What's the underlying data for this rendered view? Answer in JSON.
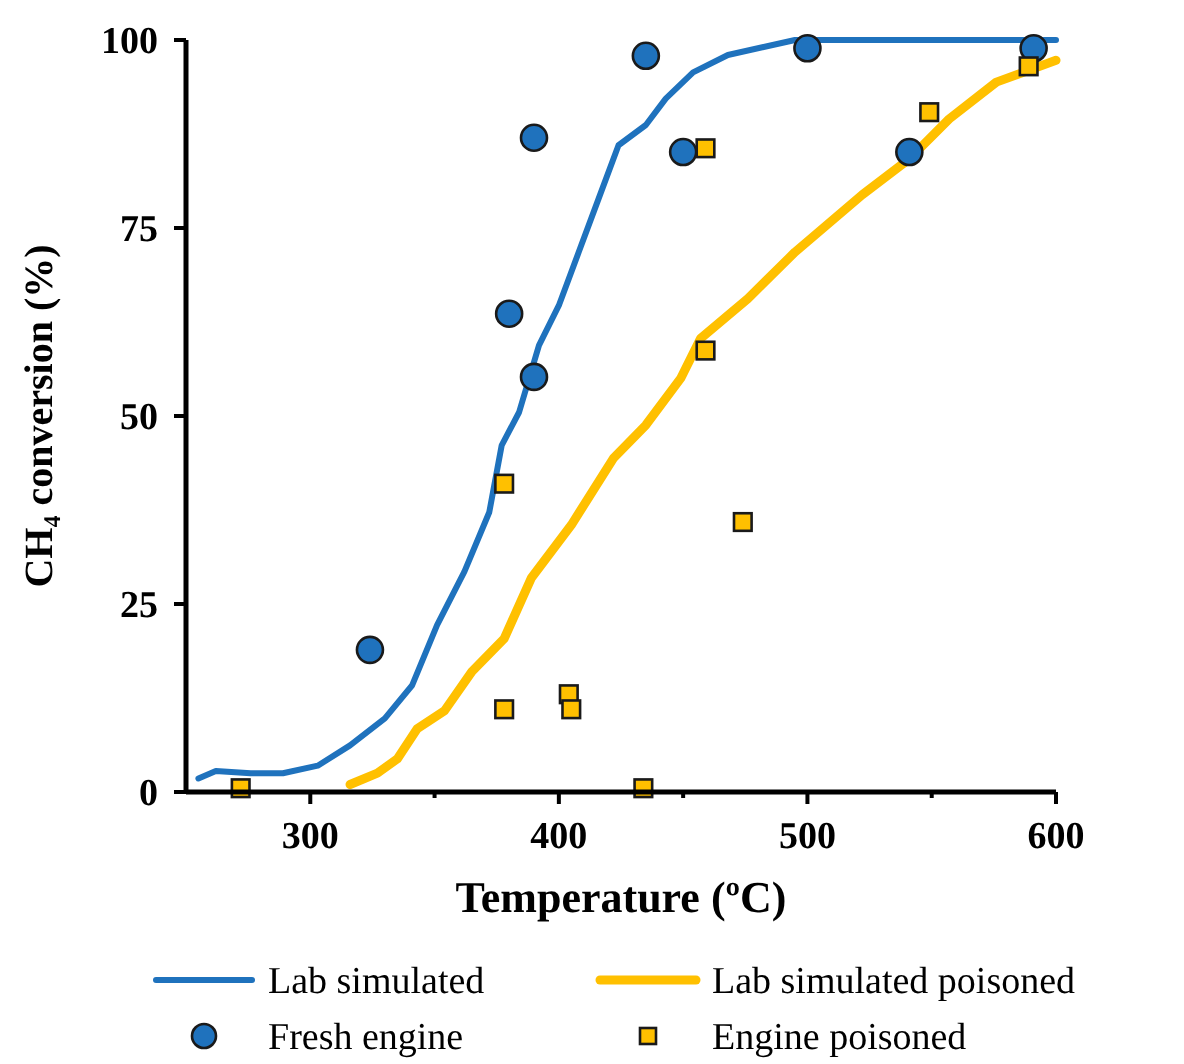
{
  "chart_data": {
    "type": "line",
    "xlabel": "Temperature (ºC)",
    "ylabel": "CH₄ conversion (%)",
    "xlim": [
      250,
      600
    ],
    "ylim": [
      0,
      100
    ],
    "xticks": [
      300,
      {
        "value": 350,
        "label": null
      },
      400,
      {
        "value": 450,
        "label": null
      },
      500,
      {
        "value": 550,
        "label": null
      },
      600
    ],
    "yticks": [
      0,
      25,
      50,
      75,
      100
    ],
    "grid": false,
    "legend": "bottom",
    "series": [
      {
        "name": "Lab simulated",
        "color": "#1f72bd",
        "marker": "none",
        "x": [
          255,
          262,
          276,
          289,
          303,
          316,
          330,
          341,
          351,
          362,
          372,
          377,
          384,
          392,
          400,
          408,
          416,
          424,
          435,
          443,
          454,
          468,
          495,
          548,
          600
        ],
        "values": [
          1.8,
          2.8,
          2.5,
          2.5,
          3.5,
          6.2,
          9.8,
          14.2,
          22.2,
          29.3,
          37.2,
          46.1,
          50.5,
          59.4,
          64.7,
          71.8,
          78.9,
          86,
          88.7,
          92.2,
          95.7,
          98,
          100,
          100,
          100
        ]
      },
      {
        "name": "Lab simulated poisoned",
        "color": "#ffc000",
        "marker": "none",
        "x": [
          316,
          327,
          335,
          343,
          354,
          365,
          378,
          389,
          405,
          422,
          435,
          449,
          457,
          476,
          495,
          522,
          541,
          557,
          576,
          600
        ],
        "values": [
          1,
          2.5,
          4.4,
          8.4,
          10.8,
          16,
          20.4,
          28.5,
          35.5,
          44.4,
          48.8,
          55,
          60.3,
          65.6,
          71.8,
          79.4,
          84.2,
          89.5,
          94.4,
          97.3
        ]
      },
      {
        "name": "Fresh engine",
        "type": "scatter",
        "color": "#1f72bd",
        "marker": "circle",
        "x": [
          324,
          380,
          390,
          390,
          435,
          450,
          500,
          541,
          591
        ],
        "values": [
          18.9,
          63.6,
          87,
          55.2,
          97.9,
          85.1,
          98.9,
          85.1,
          98.9
        ]
      },
      {
        "name": "Engine poisoned",
        "type": "scatter",
        "color": "#ffc000",
        "marker": "square",
        "x": [
          272,
          378,
          378,
          404,
          405,
          434,
          459,
          459,
          474,
          549,
          589
        ],
        "values": [
          0.5,
          41,
          11,
          13,
          11,
          0.5,
          85.6,
          58.7,
          35.9,
          90.4,
          96.5
        ]
      }
    ]
  }
}
